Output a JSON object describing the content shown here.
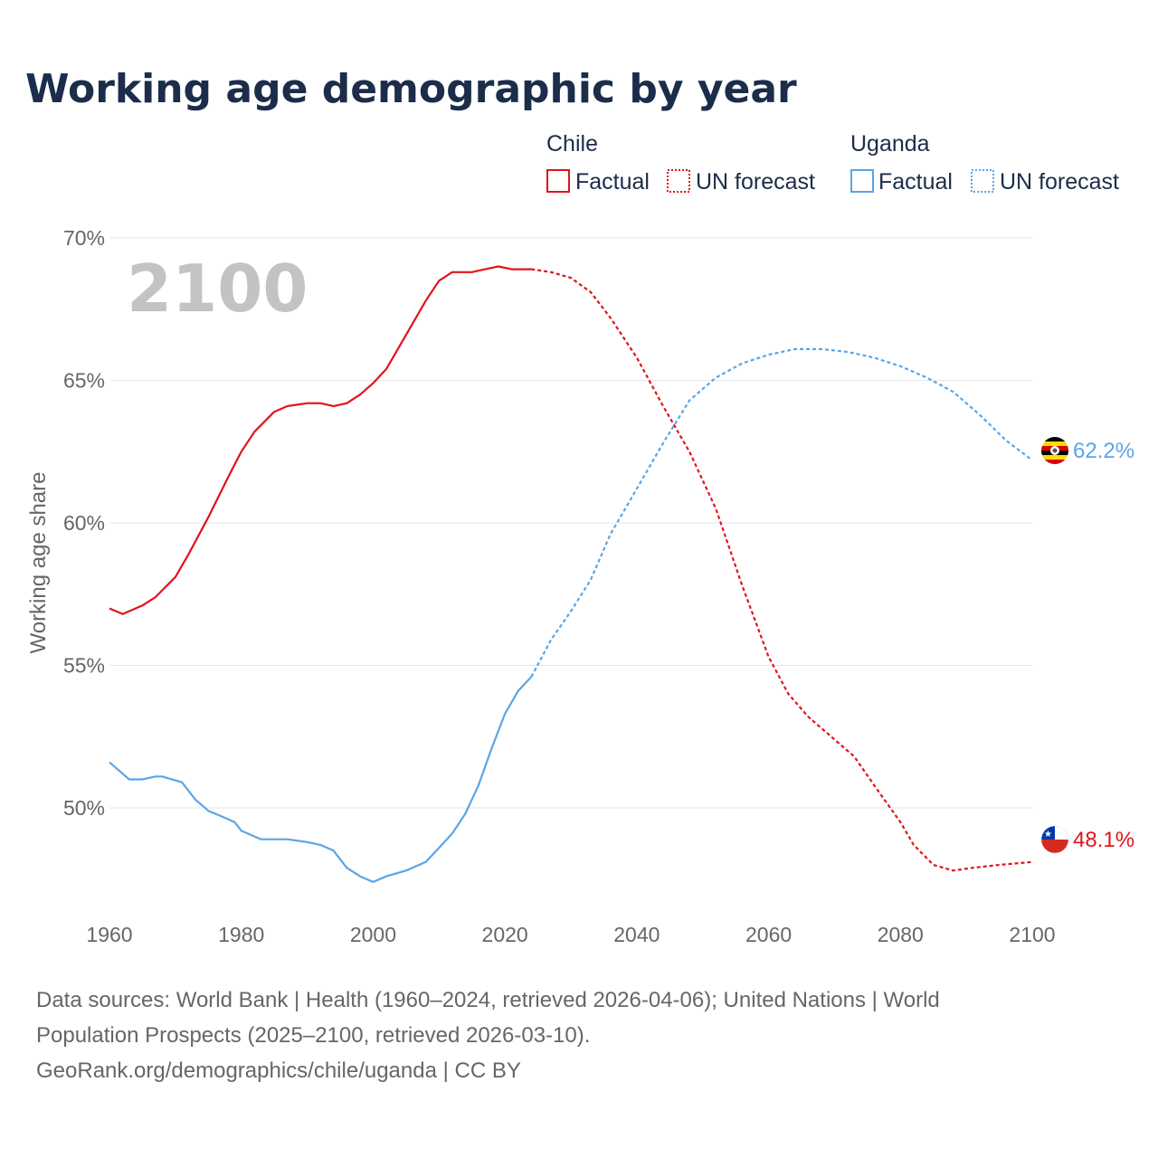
{
  "title": "Working age demographic by year",
  "colors": {
    "chile": "#e0141c",
    "uganda": "#5aa5e6",
    "grid": "#e6e6e6",
    "text": "#666666",
    "title": "#1b2d4a",
    "watermark": "#c3c3c3"
  },
  "legend": {
    "chile": {
      "group": "Chile",
      "factual": "Factual",
      "forecast": "UN forecast"
    },
    "uganda": {
      "group": "Uganda",
      "factual": "Factual",
      "forecast": "UN forecast"
    }
  },
  "year_display": "2100",
  "source": {
    "line1": "Data sources: World Bank | Health (1960–2024, retrieved 2026-04-06); United Nations | World",
    "line2": "Population Prospects (2025–2100, retrieved 2026-03-10).",
    "line3": "GeoRank.org/demographics/chile/uganda | CC BY"
  },
  "chart_data": {
    "type": "line",
    "title": "Working age demographic by year",
    "xlabel": "",
    "ylabel": "Working age share",
    "xlim": [
      1960,
      2100
    ],
    "ylim": [
      46,
      70
    ],
    "x_ticks": [
      1960,
      1980,
      2000,
      2020,
      2040,
      2060,
      2080,
      2100
    ],
    "x_tick_labels": [
      "1960",
      "1980",
      "2000",
      "2020",
      "2040",
      "2060",
      "2080",
      "2100"
    ],
    "y_ticks": [
      50,
      55,
      60,
      65,
      70
    ],
    "y_tick_labels": [
      "50%",
      "55%",
      "60%",
      "65%",
      "70%"
    ],
    "grid": true,
    "forecast_start": 2024,
    "series": [
      {
        "name": "Chile",
        "end_label": "48.1%",
        "points": [
          [
            1960,
            57.0
          ],
          [
            1962,
            56.8
          ],
          [
            1965,
            57.1
          ],
          [
            1967,
            57.4
          ],
          [
            1970,
            58.1
          ],
          [
            1972,
            58.9
          ],
          [
            1975,
            60.2
          ],
          [
            1978,
            61.6
          ],
          [
            1980,
            62.5
          ],
          [
            1982,
            63.2
          ],
          [
            1985,
            63.9
          ],
          [
            1987,
            64.1
          ],
          [
            1990,
            64.2
          ],
          [
            1992,
            64.2
          ],
          [
            1994,
            64.1
          ],
          [
            1996,
            64.2
          ],
          [
            1998,
            64.5
          ],
          [
            2000,
            64.9
          ],
          [
            2002,
            65.4
          ],
          [
            2005,
            66.6
          ],
          [
            2008,
            67.8
          ],
          [
            2010,
            68.5
          ],
          [
            2012,
            68.8
          ],
          [
            2015,
            68.8
          ],
          [
            2017,
            68.9
          ],
          [
            2019,
            69.0
          ],
          [
            2021,
            68.9
          ],
          [
            2024,
            68.9
          ],
          [
            2027,
            68.8
          ],
          [
            2030,
            68.6
          ],
          [
            2033,
            68.1
          ],
          [
            2036,
            67.2
          ],
          [
            2040,
            65.8
          ],
          [
            2044,
            64.1
          ],
          [
            2048,
            62.5
          ],
          [
            2052,
            60.5
          ],
          [
            2056,
            57.8
          ],
          [
            2060,
            55.3
          ],
          [
            2063,
            54.0
          ],
          [
            2066,
            53.2
          ],
          [
            2070,
            52.4
          ],
          [
            2073,
            51.8
          ],
          [
            2076,
            50.8
          ],
          [
            2080,
            49.5
          ],
          [
            2082,
            48.7
          ],
          [
            2085,
            48.0
          ],
          [
            2088,
            47.8
          ],
          [
            2091,
            47.9
          ],
          [
            2095,
            48.0
          ],
          [
            2100,
            48.1
          ]
        ]
      },
      {
        "name": "Uganda",
        "end_label": "62.2%",
        "points": [
          [
            1960,
            51.6
          ],
          [
            1962,
            51.2
          ],
          [
            1963,
            51.0
          ],
          [
            1965,
            51.0
          ],
          [
            1967,
            51.1
          ],
          [
            1968,
            51.1
          ],
          [
            1971,
            50.9
          ],
          [
            1973,
            50.3
          ],
          [
            1975,
            49.9
          ],
          [
            1977,
            49.7
          ],
          [
            1979,
            49.5
          ],
          [
            1980,
            49.2
          ],
          [
            1983,
            48.9
          ],
          [
            1985,
            48.9
          ],
          [
            1987,
            48.9
          ],
          [
            1990,
            48.8
          ],
          [
            1992,
            48.7
          ],
          [
            1994,
            48.5
          ],
          [
            1996,
            47.9
          ],
          [
            1998,
            47.6
          ],
          [
            2000,
            47.4
          ],
          [
            2002,
            47.6
          ],
          [
            2005,
            47.8
          ],
          [
            2008,
            48.1
          ],
          [
            2010,
            48.6
          ],
          [
            2012,
            49.1
          ],
          [
            2014,
            49.8
          ],
          [
            2016,
            50.8
          ],
          [
            2018,
            52.1
          ],
          [
            2020,
            53.3
          ],
          [
            2022,
            54.1
          ],
          [
            2024,
            54.6
          ],
          [
            2027,
            55.9
          ],
          [
            2030,
            56.9
          ],
          [
            2033,
            58.0
          ],
          [
            2036,
            59.6
          ],
          [
            2040,
            61.2
          ],
          [
            2044,
            62.8
          ],
          [
            2048,
            64.3
          ],
          [
            2052,
            65.1
          ],
          [
            2056,
            65.6
          ],
          [
            2060,
            65.9
          ],
          [
            2064,
            66.1
          ],
          [
            2068,
            66.1
          ],
          [
            2072,
            66.0
          ],
          [
            2076,
            65.8
          ],
          [
            2080,
            65.5
          ],
          [
            2084,
            65.1
          ],
          [
            2088,
            64.6
          ],
          [
            2092,
            63.8
          ],
          [
            2096,
            62.9
          ],
          [
            2100,
            62.2
          ]
        ]
      }
    ]
  }
}
